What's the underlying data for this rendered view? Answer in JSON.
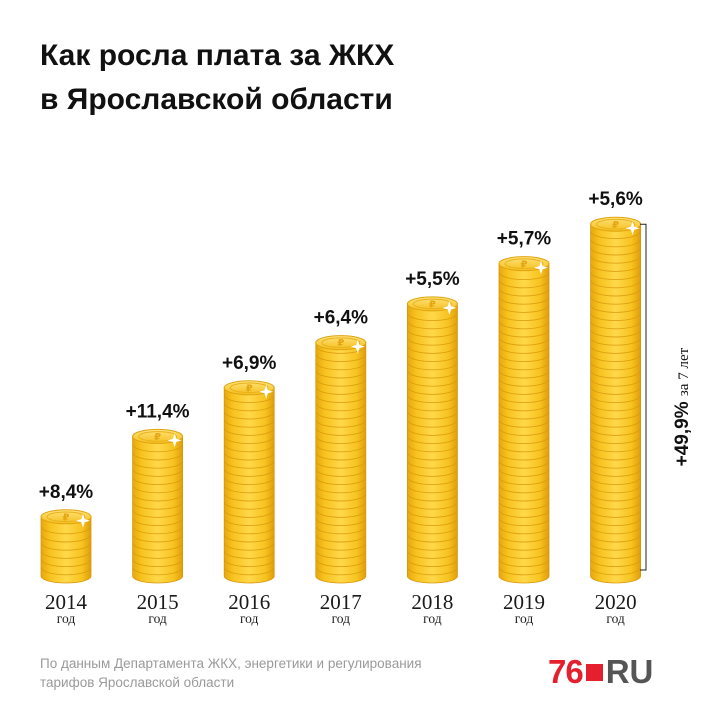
{
  "title": {
    "line1": "Как росла плата за ЖКХ",
    "line2": "в Ярославской области"
  },
  "chart_data": {
    "type": "bar",
    "title": "Как росла плата за ЖКХ в Ярославской области",
    "categories": [
      "2014",
      "2015",
      "2016",
      "2017",
      "2018",
      "2019",
      "2020"
    ],
    "category_sublabel": "год",
    "values": [
      8.4,
      11.4,
      6.9,
      6.4,
      5.5,
      5.7,
      5.6
    ],
    "value_labels": [
      "+8,4%",
      "+11,4%",
      "+6,9%",
      "+6,4%",
      "+5,5%",
      "+5,7%",
      "+5,6%"
    ],
    "bar_style": "stacked gold coins (bar height grows year over year)",
    "total": {
      "value_label": "+49,9%",
      "caption": "за 7 лет"
    },
    "colors": {
      "coin": "#f6c21c",
      "coin_dark": "#e0a10b",
      "coin_light": "#ffe27a",
      "text": "#111111"
    }
  },
  "source": {
    "line1": "По данным Департамента ЖКХ, энергетики и регулирования",
    "line2": "тарифов Ярославской области"
  },
  "logo": {
    "number": "76",
    "domain": "RU"
  }
}
